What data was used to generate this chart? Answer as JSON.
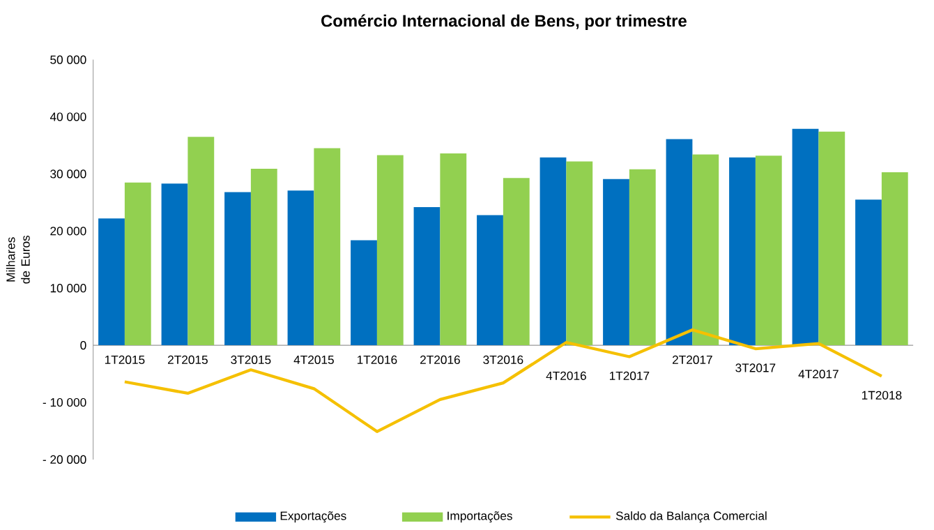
{
  "chart_data": {
    "type": "bar",
    "title": "Comércio Internacional de Bens, por trimestre",
    "ylabel": "Milhares de Euros",
    "categories": [
      "1T2015",
      "2T2015",
      "3T2015",
      "4T2015",
      "1T2016",
      "2T2016",
      "3T2016",
      "4T2016",
      "1T2017",
      "2T2017",
      "3T2017",
      "4T2017",
      "1T2018"
    ],
    "series": [
      {
        "name": "Exportações",
        "color": "#0070c0",
        "values": [
          22200,
          28300,
          26800,
          27100,
          18400,
          24200,
          22800,
          32900,
          29100,
          36100,
          32900,
          37900,
          25500
        ]
      },
      {
        "name": "Importações",
        "color": "#92d050",
        "values": [
          28500,
          36500,
          30900,
          34500,
          33300,
          33600,
          29300,
          32200,
          30800,
          33400,
          33200,
          37400,
          30300
        ]
      },
      {
        "name": "Saldo da Balança Comercial",
        "type": "line",
        "color": "#f5c000",
        "values": [
          -6400,
          -8400,
          -4300,
          -7600,
          -15100,
          -9500,
          -6600,
          500,
          -2000,
          2700,
          -600,
          300,
          -5400
        ]
      }
    ],
    "ylim": [
      -20000,
      50000
    ],
    "yticks": [
      {
        "value": -20000,
        "label": "- 20 000"
      },
      {
        "value": -10000,
        "label": "- 10 000"
      },
      {
        "value": 0,
        "label": "0"
      },
      {
        "value": 10000,
        "label": "10 000"
      },
      {
        "value": 20000,
        "label": "20 000"
      },
      {
        "value": 30000,
        "label": "30 000"
      },
      {
        "value": 40000,
        "label": "40 000"
      },
      {
        "value": 50000,
        "label": "50 000"
      }
    ],
    "legend": "bottom",
    "grid": false
  }
}
